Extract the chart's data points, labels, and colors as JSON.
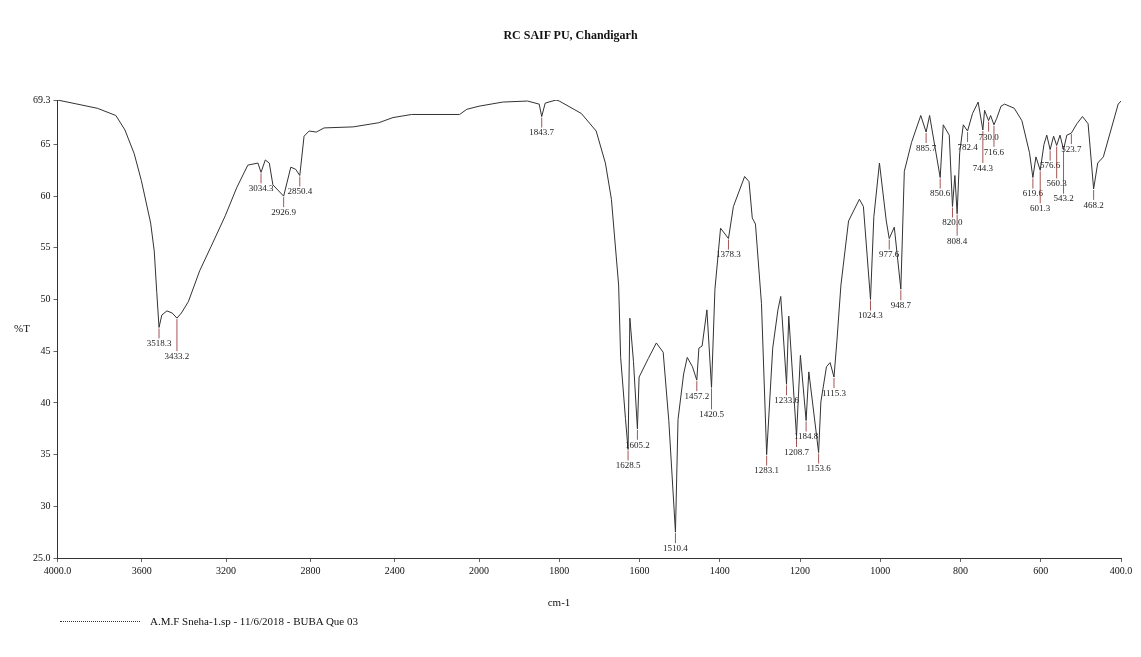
{
  "chart_data": [
    {
      "type": "line",
      "ylabel": "%T",
      "xlim": [
        4000,
        2000
      ],
      "xticks": [
        {
          "value": 4000,
          "label": "4000.0"
        },
        3600,
        3200,
        2800,
        2400,
        2000
      ],
      "ylim": [
        25,
        69.3
      ],
      "yticks": [
        {
          "value": 25,
          "label": "25.0"
        },
        30,
        35,
        40,
        45,
        50,
        55,
        60,
        65,
        {
          "value": 69.3,
          "label": "69.3"
        }
      ],
      "grid": false,
      "legend": "bottom left",
      "line_style": "solid",
      "marker": "none",
      "series": [
        {
          "name": "A.M.F Sneha-1.sp - 11/6/2018 - BUBA Que 03",
          "color": "#333333",
          "x": [
            4000,
            3811,
            3723,
            3680,
            3636,
            3602,
            3558,
            3541,
            3529,
            3518.3,
            3505,
            3481,
            3456,
            3433.2,
            3412,
            3379,
            3325,
            3272,
            3204,
            3150,
            3097,
            3049,
            3034.3,
            3014,
            2995,
            2978,
            2926.9,
            2893,
            2870,
            2850.4,
            2830,
            2806,
            2772,
            2735,
            2597,
            2476,
            2408,
            2320,
            2092,
            2058,
            2000
          ],
          "values": [
            69.3,
            68.5,
            67.8,
            66.4,
            64.1,
            61.5,
            57.4,
            54.7,
            50.7,
            47.3,
            48.5,
            48.9,
            48.7,
            48.2,
            48.7,
            49.8,
            52.8,
            55.1,
            58.1,
            60.8,
            63.0,
            63.2,
            62.3,
            63.5,
            63.2,
            61.1,
            60.0,
            62.8,
            62.6,
            62.0,
            65.8,
            66.3,
            66.2,
            66.6,
            66.7,
            67.1,
            67.6,
            67.9,
            67.9,
            68.4,
            68.7
          ]
        }
      ],
      "annotations": [
        {
          "text": "3518.3",
          "x": 3518.3,
          "y": 47.3
        },
        {
          "text": "3433.2",
          "x": 3433.2,
          "y": 48.2
        },
        {
          "text": "3034.3",
          "x": 3034.3,
          "y": 62.3
        },
        {
          "text": "2926.9",
          "x": 2926.9,
          "y": 60.0
        },
        {
          "text": "2850.4",
          "x": 2850.4,
          "y": 62.0
        }
      ]
    },
    {
      "type": "line",
      "title": "RC SAIF PU, Chandigarh",
      "xlabel": "cm-1",
      "xlim": [
        2000,
        400
      ],
      "xticks": [
        1800,
        1600,
        1400,
        1200,
        1000,
        800,
        600,
        {
          "value": 400,
          "label": "400.0"
        }
      ],
      "ylim": [
        25,
        69.3
      ],
      "tick_labels": "x",
      "grid": false,
      "line_style": "solid",
      "marker": "none",
      "series": [
        {
          "color": "#333333",
          "x": [
            2000,
            1941,
            1879,
            1850,
            1843.7,
            1835,
            1808,
            1800,
            1745,
            1708,
            1685,
            1670,
            1652,
            1647,
            1635,
            1628.5,
            1624,
            1615,
            1605.2,
            1601,
            1578,
            1558,
            1541,
            1527,
            1510.4,
            1504,
            1490,
            1481,
            1468,
            1457.2,
            1452,
            1444,
            1432,
            1420.5,
            1412,
            1398,
            1378.3,
            1366,
            1338,
            1327,
            1319,
            1311,
            1296,
            1283.1,
            1268,
            1255,
            1248,
            1233.6,
            1228,
            1208.7,
            1199,
            1184.8,
            1178,
            1153.6,
            1148,
            1134,
            1125,
            1115.3,
            1108,
            1098,
            1079,
            1052,
            1042,
            1024.3,
            1016,
            1002,
            985,
            977.6,
            965,
            948.7,
            940,
            922,
            899,
            885.7,
            877,
            850.6,
            843,
            828,
            820,
            814,
            808.4,
            802,
            793,
            782.4,
            770,
            756,
            744.3,
            740,
            730,
            725,
            716.6,
            710,
            699,
            690,
            666,
            647,
            628,
            619.6,
            612,
            601.3,
            592,
            585,
            576.6,
            568,
            560.3,
            552,
            543.2,
            535,
            523.7,
            510,
            496,
            482,
            468.2,
            458,
            444,
            407,
            400
          ],
          "values": [
            68.7,
            69.1,
            69.2,
            68.9,
            67.7,
            69.0,
            69.3,
            69.2,
            68.0,
            66.3,
            63.2,
            59.7,
            51.4,
            44.4,
            38.5,
            35.5,
            48.2,
            44.0,
            37.5,
            42.5,
            44.3,
            45.8,
            44.9,
            38.3,
            27.5,
            38.4,
            42.8,
            44.4,
            43.5,
            42.2,
            45.3,
            45.5,
            49.0,
            41.5,
            51.0,
            56.9,
            55.9,
            59.0,
            61.9,
            61.4,
            57.9,
            57.3,
            49.6,
            35.0,
            45.3,
            49.0,
            50.3,
            41.8,
            48.4,
            36.8,
            44.6,
            38.3,
            43.0,
            35.2,
            40.1,
            43.5,
            43.9,
            42.5,
            46.0,
            51.4,
            57.6,
            59.7,
            59.0,
            50.0,
            58.0,
            63.2,
            57.6,
            55.9,
            57.0,
            51.0,
            62.4,
            65.2,
            67.8,
            66.2,
            67.8,
            61.8,
            66.9,
            65.9,
            59.0,
            62.0,
            58.3,
            64.2,
            66.9,
            66.3,
            68.0,
            69.1,
            66.4,
            68.3,
            67.3,
            67.8,
            66.9,
            67.5,
            68.7,
            68.9,
            68.5,
            67.3,
            64.2,
            61.8,
            63.8,
            62.5,
            65.0,
            65.9,
            64.5,
            65.8,
            64.9,
            65.9,
            64.5,
            65.9,
            66.1,
            67.0,
            67.7,
            67.0,
            60.7,
            63.2,
            63.8,
            68.9,
            69.2
          ]
        }
      ],
      "annotations": [
        {
          "text": "1843.7",
          "x": 1843.7,
          "y": 67.7
        },
        {
          "text": "1628.5",
          "x": 1628.5,
          "y": 35.5
        },
        {
          "text": "1605.2",
          "x": 1605.2,
          "y": 37.5
        },
        {
          "text": "1510.4",
          "x": 1510.4,
          "y": 27.5
        },
        {
          "text": "1457.2",
          "x": 1457.2,
          "y": 42.2
        },
        {
          "text": "1420.5",
          "x": 1420.5,
          "y": 41.5
        },
        {
          "text": "1378.3",
          "x": 1378.3,
          "y": 55.9
        },
        {
          "text": "1283.1",
          "x": 1283.1,
          "y": 35.0
        },
        {
          "text": "1233.6",
          "x": 1233.6,
          "y": 41.8
        },
        {
          "text": "1208.7",
          "x": 1208.7,
          "y": 36.8
        },
        {
          "text": "1184.8",
          "x": 1184.8,
          "y": 38.3
        },
        {
          "text": "1153.6",
          "x": 1153.6,
          "y": 35.2
        },
        {
          "text": "1115.3",
          "x": 1115.3,
          "y": 42.5
        },
        {
          "text": "1024.3",
          "x": 1024.3,
          "y": 50.0
        },
        {
          "text": "977.6",
          "x": 977.6,
          "y": 55.9
        },
        {
          "text": "948.7",
          "x": 948.7,
          "y": 51.0
        },
        {
          "text": "885.7",
          "x": 885.7,
          "y": 66.2
        },
        {
          "text": "850.6",
          "x": 850.6,
          "y": 61.8
        },
        {
          "text": "820.0",
          "x": 820,
          "y": 59.0
        },
        {
          "text": "808.4",
          "x": 808.4,
          "y": 58.3
        },
        {
          "text": "782.4",
          "x": 782.4,
          "y": 66.3
        },
        {
          "text": "744.3",
          "x": 744.3,
          "y": 66.4
        },
        {
          "text": "730.0",
          "x": 730,
          "y": 67.3
        },
        {
          "text": "716.6",
          "x": 716.6,
          "y": 66.9
        },
        {
          "text": "619.6",
          "x": 619.6,
          "y": 61.8
        },
        {
          "text": "601.3",
          "x": 601.3,
          "y": 62.5
        },
        {
          "text": "576.6",
          "x": 576.6,
          "y": 64.5
        },
        {
          "text": "560.3",
          "x": 560.3,
          "y": 64.9
        },
        {
          "text": "543.2",
          "x": 543.2,
          "y": 64.5
        },
        {
          "text": "523.7",
          "x": 523.7,
          "y": 66.1
        },
        {
          "text": "468.2",
          "x": 468.2,
          "y": 60.7
        }
      ]
    }
  ]
}
